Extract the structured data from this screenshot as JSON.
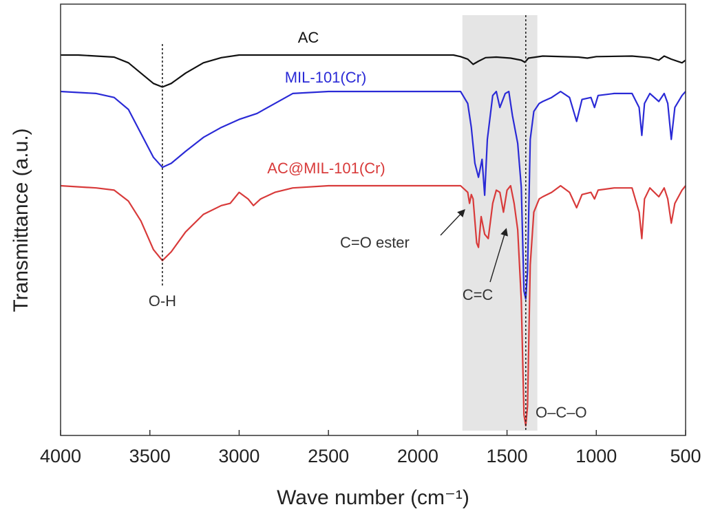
{
  "chart_data": {
    "type": "line",
    "title": "",
    "xlabel": "Wave number (cm⁻¹)",
    "ylabel": "Transmittance (a.u.)",
    "xlim": [
      4000,
      500
    ],
    "x_ticks": [
      4000,
      3500,
      3000,
      2500,
      2000,
      1500,
      1000,
      500
    ],
    "y_ticks_shown": false,
    "highlight_band": [
      1750,
      1330
    ],
    "series": [
      {
        "name": "AC",
        "color": "#111111",
        "points": [
          [
            4000,
            0.0
          ],
          [
            3900,
            0.0
          ],
          [
            3800,
            -0.02
          ],
          [
            3700,
            -0.04
          ],
          [
            3620,
            -0.15
          ],
          [
            3550,
            -0.35
          ],
          [
            3480,
            -0.55
          ],
          [
            3430,
            -0.62
          ],
          [
            3380,
            -0.55
          ],
          [
            3300,
            -0.35
          ],
          [
            3200,
            -0.15
          ],
          [
            3100,
            -0.05
          ],
          [
            3000,
            0.0
          ],
          [
            2500,
            0.0
          ],
          [
            2000,
            0.0
          ],
          [
            1800,
            0.0
          ],
          [
            1760,
            -0.03
          ],
          [
            1720,
            -0.08
          ],
          [
            1690,
            -0.18
          ],
          [
            1660,
            -0.12
          ],
          [
            1620,
            -0.05
          ],
          [
            1560,
            -0.04
          ],
          [
            1480,
            -0.06
          ],
          [
            1420,
            -0.1
          ],
          [
            1400,
            -0.14
          ],
          [
            1380,
            -0.06
          ],
          [
            1300,
            -0.02
          ],
          [
            1100,
            -0.04
          ],
          [
            1050,
            -0.06
          ],
          [
            1000,
            -0.03
          ],
          [
            800,
            -0.02
          ],
          [
            700,
            -0.05
          ],
          [
            650,
            -0.1
          ],
          [
            620,
            -0.02
          ],
          [
            580,
            -0.08
          ],
          [
            520,
            -0.15
          ],
          [
            500,
            -0.1
          ]
        ]
      },
      {
        "name": "MIL-101(Cr)",
        "color": "#2a2ad6",
        "points": [
          [
            4000,
            0.0
          ],
          [
            3800,
            -0.05
          ],
          [
            3700,
            -0.15
          ],
          [
            3620,
            -0.45
          ],
          [
            3550,
            -1.05
          ],
          [
            3480,
            -1.65
          ],
          [
            3430,
            -1.9
          ],
          [
            3380,
            -1.8
          ],
          [
            3300,
            -1.5
          ],
          [
            3200,
            -1.15
          ],
          [
            3100,
            -0.9
          ],
          [
            3000,
            -0.7
          ],
          [
            2900,
            -0.55
          ],
          [
            2800,
            -0.3
          ],
          [
            2700,
            -0.05
          ],
          [
            2500,
            0.0
          ],
          [
            2000,
            0.0
          ],
          [
            1760,
            0.0
          ],
          [
            1720,
            -0.3
          ],
          [
            1700,
            -0.9
          ],
          [
            1680,
            -1.8
          ],
          [
            1660,
            -2.15
          ],
          [
            1640,
            -1.7
          ],
          [
            1625,
            -2.6
          ],
          [
            1610,
            -1.2
          ],
          [
            1580,
            -0.1
          ],
          [
            1560,
            0.0
          ],
          [
            1540,
            -0.4
          ],
          [
            1510,
            -0.05
          ],
          [
            1490,
            0.0
          ],
          [
            1470,
            -0.6
          ],
          [
            1440,
            -1.3
          ],
          [
            1420,
            -2.4
          ],
          [
            1405,
            -5.0
          ],
          [
            1395,
            -5.2
          ],
          [
            1385,
            -4.5
          ],
          [
            1370,
            -1.2
          ],
          [
            1350,
            -0.5
          ],
          [
            1320,
            -0.3
          ],
          [
            1300,
            -0.25
          ],
          [
            1250,
            -0.15
          ],
          [
            1200,
            0.0
          ],
          [
            1150,
            -0.15
          ],
          [
            1110,
            -0.75
          ],
          [
            1080,
            -0.2
          ],
          [
            1030,
            -0.15
          ],
          [
            1010,
            -0.4
          ],
          [
            990,
            -0.1
          ],
          [
            900,
            -0.05
          ],
          [
            800,
            -0.05
          ],
          [
            760,
            -0.4
          ],
          [
            745,
            -1.1
          ],
          [
            730,
            -0.3
          ],
          [
            700,
            -0.05
          ],
          [
            650,
            -0.25
          ],
          [
            620,
            -0.05
          ],
          [
            600,
            -0.3
          ],
          [
            580,
            -1.2
          ],
          [
            560,
            -0.4
          ],
          [
            520,
            -0.1
          ],
          [
            500,
            0.0
          ]
        ]
      },
      {
        "name": "AC@MIL-101(Cr)",
        "color": "#d83a3a",
        "points": [
          [
            4000,
            0.0
          ],
          [
            3800,
            -0.05
          ],
          [
            3700,
            -0.1
          ],
          [
            3620,
            -0.35
          ],
          [
            3550,
            -0.8
          ],
          [
            3480,
            -1.45
          ],
          [
            3430,
            -1.7
          ],
          [
            3380,
            -1.5
          ],
          [
            3300,
            -1.05
          ],
          [
            3200,
            -0.65
          ],
          [
            3100,
            -0.45
          ],
          [
            3050,
            -0.4
          ],
          [
            3000,
            -0.15
          ],
          [
            2950,
            -0.3
          ],
          [
            2920,
            -0.45
          ],
          [
            2880,
            -0.3
          ],
          [
            2800,
            -0.15
          ],
          [
            2700,
            -0.05
          ],
          [
            2500,
            0.0
          ],
          [
            2000,
            0.0
          ],
          [
            1760,
            0.0
          ],
          [
            1720,
            -0.15
          ],
          [
            1710,
            -0.4
          ],
          [
            1700,
            -0.2
          ],
          [
            1690,
            -0.3
          ],
          [
            1670,
            -1.3
          ],
          [
            1660,
            -1.4
          ],
          [
            1645,
            -0.7
          ],
          [
            1625,
            -1.1
          ],
          [
            1605,
            -1.2
          ],
          [
            1580,
            -0.4
          ],
          [
            1560,
            -0.1
          ],
          [
            1540,
            -0.15
          ],
          [
            1520,
            -0.6
          ],
          [
            1500,
            -0.1
          ],
          [
            1480,
            0.0
          ],
          [
            1460,
            -0.4
          ],
          [
            1440,
            -1.0
          ],
          [
            1420,
            -2.6
          ],
          [
            1405,
            -5.2
          ],
          [
            1395,
            -5.45
          ],
          [
            1385,
            -5.0
          ],
          [
            1370,
            -1.8
          ],
          [
            1350,
            -0.6
          ],
          [
            1320,
            -0.3
          ],
          [
            1300,
            -0.25
          ],
          [
            1250,
            -0.15
          ],
          [
            1200,
            0.0
          ],
          [
            1150,
            -0.15
          ],
          [
            1110,
            -0.5
          ],
          [
            1080,
            -0.2
          ],
          [
            1030,
            -0.15
          ],
          [
            1010,
            -0.3
          ],
          [
            990,
            -0.1
          ],
          [
            900,
            -0.05
          ],
          [
            800,
            -0.05
          ],
          [
            760,
            -0.6
          ],
          [
            745,
            -1.2
          ],
          [
            730,
            -0.3
          ],
          [
            700,
            -0.05
          ],
          [
            650,
            -0.25
          ],
          [
            620,
            -0.05
          ],
          [
            600,
            -0.3
          ],
          [
            580,
            -0.85
          ],
          [
            560,
            -0.4
          ],
          [
            520,
            -0.1
          ],
          [
            500,
            0.0
          ]
        ]
      }
    ],
    "reference_lines": [
      {
        "x": 3430,
        "label": "O-H"
      },
      {
        "x": 1395,
        "label": "O–C–O"
      }
    ],
    "annotations": [
      {
        "label": "C=O ester",
        "target_x": 1720
      },
      {
        "label": "C=C",
        "target_x": 1500
      }
    ]
  }
}
